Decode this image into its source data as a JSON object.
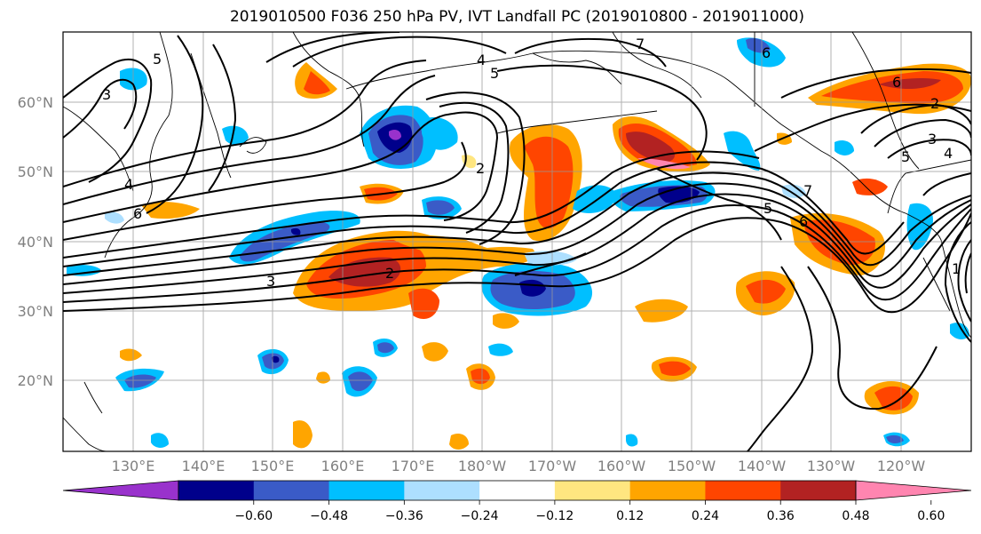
{
  "title": "2019010500 F036 250 hPa PV, IVT Landfall PC (2019010800 - 2019011000)",
  "lat_labels": [
    "60°N",
    "50°N",
    "40°N",
    "30°N",
    "20°N"
  ],
  "lon_labels": [
    "130°E",
    "140°E",
    "150°E",
    "160°E",
    "170°E",
    "180°W",
    "170°W",
    "160°W",
    "150°W",
    "140°W",
    "130°W",
    "120°W"
  ],
  "colorbar": {
    "ticks": [
      "−0.60",
      "−0.48",
      "−0.36",
      "−0.24",
      "−0.12",
      "0.12",
      "0.24",
      "0.36",
      "0.48",
      "0.60"
    ],
    "colors": [
      "#9932CC",
      "#00008B",
      "#3A5BC7",
      "#00BFFF",
      "#ADDFFF",
      "#FFFFFF",
      "#FFE680",
      "#FFA500",
      "#FF4500",
      "#B22222",
      "#FF85B0"
    ]
  },
  "contour_labels": [
    "7",
    "5",
    "4",
    "5",
    "3",
    "6",
    "6",
    "2",
    "3",
    "4",
    "5",
    "7",
    "6",
    "2",
    "5",
    "4",
    "6",
    "1",
    "3",
    "2"
  ]
}
